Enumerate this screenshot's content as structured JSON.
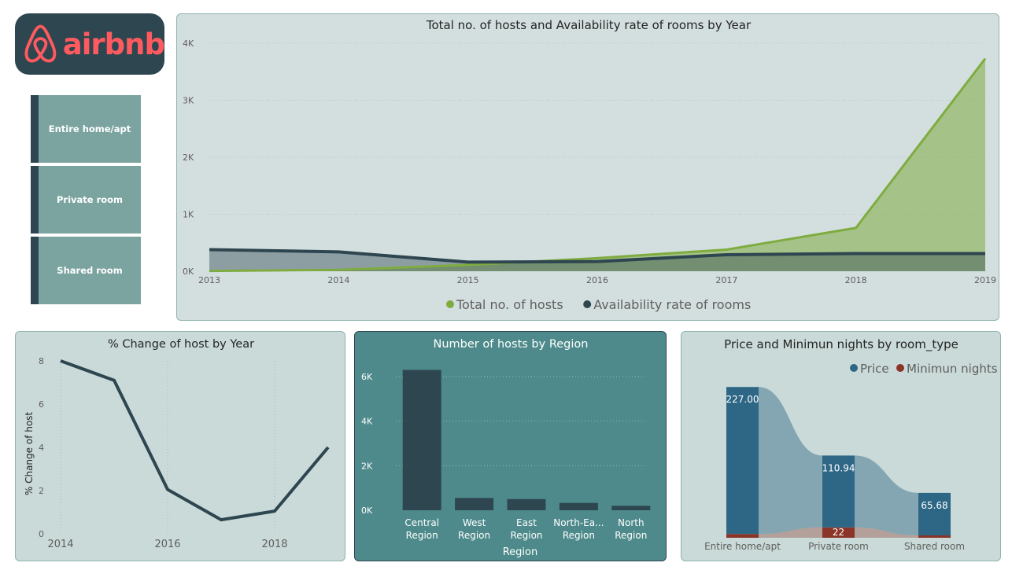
{
  "logo": {
    "text": "airbnb",
    "color": "#ff5a5f"
  },
  "slicer": {
    "items": [
      {
        "label": "Entire home/apt"
      },
      {
        "label": "Private room"
      },
      {
        "label": "Shared room"
      }
    ]
  },
  "chart_data": [
    {
      "type": "area",
      "title": "Total no. of hosts and Availability rate of rooms by Year",
      "x": [
        "2013",
        "2014",
        "2015",
        "2016",
        "2017",
        "2018",
        "2019"
      ],
      "ylim": [
        0,
        4000
      ],
      "yticks": [
        "0K",
        "1K",
        "2K",
        "3K",
        "4K"
      ],
      "legend_position": "bottom",
      "series": [
        {
          "name": "Total no. of hosts",
          "color": "#7fac40",
          "values": [
            5,
            25,
            110,
            230,
            380,
            760,
            3730
          ]
        },
        {
          "name": "Availability rate of rooms",
          "color": "#2e4650",
          "values": [
            380,
            340,
            160,
            170,
            290,
            310,
            310
          ]
        }
      ]
    },
    {
      "type": "line",
      "title": "% Change of host by Year",
      "ylabel": "% Change of host",
      "x": [
        2014,
        2015,
        2016,
        2017,
        2018,
        2019
      ],
      "xticks": [
        "2014",
        "2016",
        "2018"
      ],
      "ylim": [
        0,
        8
      ],
      "yticks": [
        "0",
        "2",
        "4",
        "6",
        "8"
      ],
      "series": [
        {
          "color": "#2e4650",
          "values": [
            8.0,
            7.1,
            2.05,
            0.65,
            1.05,
            4.0
          ]
        }
      ]
    },
    {
      "type": "bar",
      "title": "Number of hosts by Region",
      "xlabel": "Region",
      "categories": [
        [
          "Central",
          "Region"
        ],
        [
          "West",
          "Region"
        ],
        [
          "East",
          "Region"
        ],
        [
          "North-Ea...",
          "Region"
        ],
        [
          "North",
          "Region"
        ]
      ],
      "values": [
        6300,
        550,
        500,
        330,
        200
      ],
      "ylim": [
        0,
        6600
      ],
      "yticks": [
        "0K",
        "2K",
        "4K",
        "6K"
      ],
      "color": "#2e4650"
    },
    {
      "type": "bar",
      "title": "Price and Minimun nights by room_type",
      "legend_position": "top-right",
      "categories": [
        "Entire home/apt",
        "Private room",
        "Shared room"
      ],
      "series": [
        {
          "name": "Price",
          "color": "#2e6786",
          "values": [
            227.0,
            110.94,
            65.68
          ],
          "labels": [
            "227.00",
            "110.94",
            "65.68"
          ]
        },
        {
          "name": "Minimun nights",
          "color": "#8b3428",
          "values": [
            8,
            22,
            2
          ],
          "labels": [
            "",
            "22",
            ""
          ]
        }
      ]
    }
  ]
}
